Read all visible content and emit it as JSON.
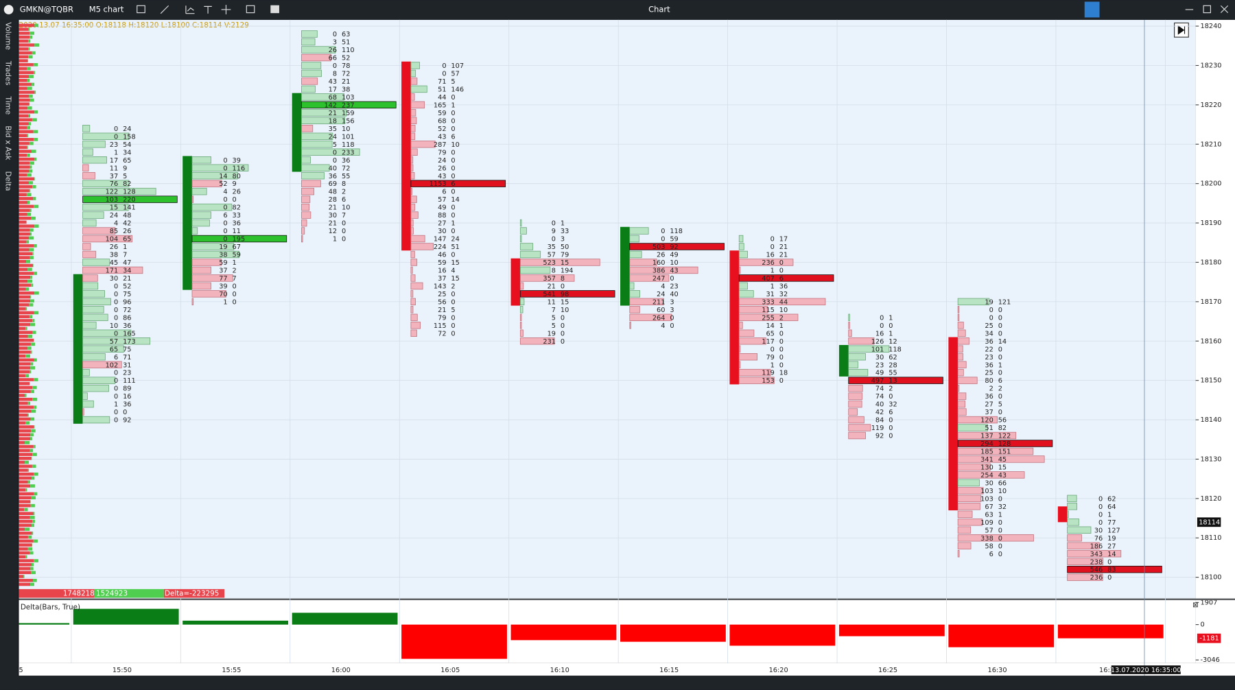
{
  "window": {
    "symbol": "GMKN@TQBR",
    "timeframe": "M5 chart",
    "title": "Chart"
  },
  "tabs": [
    "Volume",
    "Trades",
    "Time",
    "Bid x Ask",
    "Delta"
  ],
  "info": "2020.13.07 16:35:00 O:18118 H:18120 L:18100 C:18114 V:2129",
  "price_axis": {
    "ylim": [
      18094.6,
      18241.6
    ],
    "yticks": [
      18100,
      18110,
      18120,
      18130,
      18140,
      18150,
      18160,
      18170,
      18180,
      18190,
      18200,
      18210,
      18220,
      18230,
      18240
    ],
    "current": 18114
  },
  "time_labels": [
    "5",
    "15:50",
    "15:55",
    "16:00",
    "16:05",
    "16:10",
    "16:15",
    "16:20",
    "16:25",
    "16:30",
    "16:3"
  ],
  "cursor_time": "13.07.2020 16:35:00",
  "candles": [
    {
      "open": 18139,
      "close": 18177
    },
    {
      "open": 18173,
      "close": 18207
    },
    {
      "open": 18203,
      "close": 18223
    },
    {
      "open": 18231,
      "close": 18183
    },
    {
      "open": 18181,
      "close": 18169
    },
    {
      "open": 18169,
      "close": 18189
    },
    {
      "open": 18183,
      "close": 18149
    },
    {
      "open": 18151,
      "close": 18159
    },
    {
      "open": 18161,
      "close": 18117
    },
    {
      "open": 18118,
      "close": 18114
    }
  ],
  "clusters": [
    {
      "top": 18214,
      "rows": [
        [
          0,
          24
        ],
        [
          0,
          158
        ],
        [
          23,
          54
        ],
        [
          1,
          34
        ],
        [
          17,
          65
        ],
        [
          11,
          9
        ],
        [
          37,
          5
        ],
        [
          76,
          82
        ],
        [
          122,
          128
        ],
        [
          103,
          220
        ],
        [
          15,
          141
        ],
        [
          24,
          48
        ],
        [
          4,
          42
        ],
        [
          85,
          26
        ],
        [
          104,
          65
        ],
        [
          26,
          1
        ],
        [
          38,
          7
        ],
        [
          45,
          47
        ],
        [
          171,
          34
        ],
        [
          30,
          21
        ],
        [
          0,
          52
        ],
        [
          0,
          75
        ],
        [
          0,
          96
        ],
        [
          0,
          72
        ],
        [
          0,
          86
        ],
        [
          10,
          36
        ],
        [
          0,
          165
        ],
        [
          57,
          173
        ],
        [
          65,
          75
        ],
        [
          6,
          71
        ],
        [
          102,
          31
        ],
        [
          0,
          23
        ],
        [
          0,
          111
        ],
        [
          0,
          89
        ],
        [
          0,
          16
        ],
        [
          1,
          36
        ],
        [
          0,
          0
        ],
        [
          0,
          92
        ]
      ]
    },
    {
      "top": 18206,
      "rows": [
        [
          0,
          39
        ],
        [
          0,
          116
        ],
        [
          14,
          80
        ],
        [
          52,
          9
        ],
        [
          4,
          26
        ],
        [
          0,
          0
        ],
        [
          0,
          82
        ],
        [
          6,
          33
        ],
        [
          0,
          36
        ],
        [
          0,
          11
        ],
        [
          0,
          195
        ],
        [
          19,
          67
        ],
        [
          38,
          59
        ],
        [
          59,
          1
        ],
        [
          37,
          2
        ],
        [
          77,
          7
        ],
        [
          39,
          0
        ],
        [
          70,
          0
        ],
        [
          1,
          0
        ]
      ]
    },
    {
      "top": 18238,
      "rows": [
        [
          0,
          63
        ],
        [
          3,
          51
        ],
        [
          26,
          110
        ],
        [
          66,
          52
        ],
        [
          0,
          78
        ],
        [
          8,
          72
        ],
        [
          43,
          21
        ],
        [
          17,
          38
        ],
        [
          68,
          103
        ],
        [
          142,
          237
        ],
        [
          21,
          159
        ],
        [
          18,
          156
        ],
        [
          35,
          10
        ],
        [
          24,
          101
        ],
        [
          5,
          118
        ],
        [
          0,
          233
        ],
        [
          0,
          36
        ],
        [
          40,
          72
        ],
        [
          36,
          55
        ],
        [
          69,
          8
        ],
        [
          48,
          2
        ],
        [
          28,
          6
        ],
        [
          21,
          10
        ],
        [
          30,
          7
        ],
        [
          21,
          0
        ],
        [
          12,
          0
        ],
        [
          1,
          0
        ]
      ]
    },
    {
      "top": 18230,
      "rows": [
        [
          0,
          107
        ],
        [
          0,
          57
        ],
        [
          71,
          5
        ],
        [
          51,
          146
        ],
        [
          44,
          0
        ],
        [
          165,
          1
        ],
        [
          59,
          0
        ],
        [
          68,
          0
        ],
        [
          52,
          0
        ],
        [
          43,
          6
        ],
        [
          287,
          10
        ],
        [
          79,
          0
        ],
        [
          24,
          0
        ],
        [
          26,
          0
        ],
        [
          43,
          0
        ],
        [
          1153,
          6
        ],
        [
          6,
          0
        ],
        [
          57,
          14
        ],
        [
          49,
          0
        ],
        [
          88,
          0
        ],
        [
          27,
          1
        ],
        [
          30,
          0
        ],
        [
          147,
          24
        ],
        [
          224,
          51
        ],
        [
          46,
          0
        ],
        [
          59,
          15
        ],
        [
          16,
          4
        ],
        [
          37,
          15
        ],
        [
          143,
          2
        ],
        [
          25,
          0
        ],
        [
          56,
          0
        ],
        [
          21,
          5
        ],
        [
          79,
          0
        ],
        [
          115,
          0
        ],
        [
          72,
          0
        ]
      ]
    },
    {
      "top": 18190,
      "rows": [
        [
          0,
          1
        ],
        [
          9,
          33
        ],
        [
          0,
          3
        ],
        [
          35,
          50
        ],
        [
          57,
          79
        ],
        [
          523,
          15
        ],
        [
          8,
          194
        ],
        [
          357,
          8
        ],
        [
          21,
          0
        ],
        [
          541,
          98
        ],
        [
          11,
          15
        ],
        [
          7,
          10
        ],
        [
          5,
          0
        ],
        [
          5,
          0
        ],
        [
          19,
          0
        ],
        [
          231,
          0
        ]
      ]
    },
    {
      "top": 18188,
      "rows": [
        [
          0,
          118
        ],
        [
          0,
          59
        ],
        [
          503,
          92
        ],
        [
          26,
          49
        ],
        [
          160,
          10
        ],
        [
          386,
          43
        ],
        [
          247,
          0
        ],
        [
          4,
          23
        ],
        [
          24,
          40
        ],
        [
          211,
          3
        ],
        [
          60,
          3
        ],
        [
          264,
          0
        ],
        [
          4,
          0
        ]
      ]
    },
    {
      "top": 18186,
      "rows": [
        [
          0,
          17
        ],
        [
          0,
          21
        ],
        [
          16,
          21
        ],
        [
          236,
          0
        ],
        [
          1,
          0
        ],
        [
          407,
          6
        ],
        [
          1,
          36
        ],
        [
          31,
          32
        ],
        [
          333,
          44
        ],
        [
          115,
          10
        ],
        [
          255,
          2
        ],
        [
          14,
          1
        ],
        [
          65,
          0
        ],
        [
          117,
          0
        ],
        [
          0,
          0
        ],
        [
          79,
          0
        ],
        [
          1,
          0
        ],
        [
          119,
          18
        ],
        [
          153,
          0
        ]
      ]
    },
    {
      "top": 18166,
      "rows": [
        [
          0,
          1
        ],
        [
          0,
          0
        ],
        [
          16,
          1
        ],
        [
          126,
          12
        ],
        [
          101,
          118
        ],
        [
          30,
          62
        ],
        [
          23,
          28
        ],
        [
          49,
          55
        ],
        [
          497,
          13
        ],
        [
          74,
          2
        ],
        [
          74,
          0
        ],
        [
          40,
          32
        ],
        [
          42,
          6
        ],
        [
          84,
          0
        ],
        [
          119,
          0
        ],
        [
          92,
          0
        ]
      ]
    },
    {
      "top": 18170,
      "rows": [
        [
          19,
          121
        ],
        [
          0,
          0
        ],
        [
          0,
          0
        ],
        [
          25,
          0
        ],
        [
          34,
          0
        ],
        [
          36,
          14
        ],
        [
          22,
          0
        ],
        [
          23,
          0
        ],
        [
          36,
          1
        ],
        [
          25,
          0
        ],
        [
          80,
          6
        ],
        [
          2,
          2
        ],
        [
          36,
          0
        ],
        [
          27,
          5
        ],
        [
          37,
          0
        ],
        [
          120,
          56
        ],
        [
          51,
          82
        ],
        [
          137,
          122
        ],
        [
          294,
          128
        ],
        [
          185,
          151
        ],
        [
          341,
          45
        ],
        [
          130,
          15
        ],
        [
          254,
          43
        ],
        [
          30,
          66
        ],
        [
          103,
          10
        ],
        [
          103,
          0
        ],
        [
          67,
          32
        ],
        [
          63,
          1
        ],
        [
          109,
          0
        ],
        [
          57,
          0
        ],
        [
          338,
          0
        ],
        [
          58,
          0
        ],
        [
          6,
          0
        ]
      ]
    },
    {
      "top": 18120,
      "rows": [
        [
          0,
          62
        ],
        [
          0,
          64
        ],
        [
          0,
          1
        ],
        [
          0,
          77
        ],
        [
          30,
          127
        ],
        [
          76,
          19
        ],
        [
          186,
          27
        ],
        [
          343,
          14
        ],
        [
          238,
          0
        ],
        [
          546,
          83
        ],
        [
          236,
          0
        ]
      ]
    }
  ],
  "stats": {
    "bid": "1748218",
    "ask": "1524923",
    "delta": "Delta=-223295"
  },
  "delta_panel": {
    "title": "Delta(Bars, True)",
    "ylim": [
      -3046,
      1907
    ],
    "yticks": [
      1907,
      0,
      -3046
    ],
    "current": -1181,
    "values": [
      130,
      1360,
      340,
      1020,
      -2950,
      -1340,
      -1480,
      -1820,
      -1000,
      -1950,
      -1181
    ]
  }
}
